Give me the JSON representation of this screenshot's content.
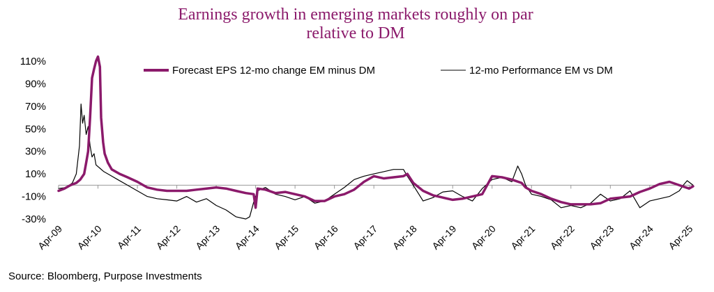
{
  "chart_data": {
    "type": "line",
    "title": [
      "Earnings growth in emerging markets roughly on par",
      "relative to DM"
    ],
    "xlabel": "",
    "ylabel": "",
    "ylim": [
      -35,
      115
    ],
    "y_ticks": [
      "110%",
      "90%",
      "70%",
      "50%",
      "30%",
      "10%",
      "-10%",
      "-30%"
    ],
    "y_tick_values": [
      110,
      90,
      70,
      50,
      30,
      10,
      -10,
      -30
    ],
    "x_ticks": [
      "Apr-09",
      "Apr-10",
      "Apr-11",
      "Apr-12",
      "Apr-13",
      "Apr-14",
      "Apr-15",
      "Apr-16",
      "Apr-17",
      "Apr-18",
      "Apr-19",
      "Apr-20",
      "Apr-21",
      "Apr-22",
      "Apr-23",
      "Apr-24",
      "Apr-25"
    ],
    "x_tick_values": [
      2009.25,
      2010.25,
      2011.25,
      2012.25,
      2013.25,
      2014.25,
      2015.25,
      2016.25,
      2017.25,
      2018.25,
      2019.25,
      2020.25,
      2021.25,
      2022.25,
      2023.25,
      2024.25,
      2025.25
    ],
    "xlim": [
      2009.25,
      2025.35
    ],
    "legend_position": "top",
    "series": [
      {
        "name": "Forecast EPS 12-mo change EM minus DM",
        "color": "#8b1a6b",
        "x": [
          2009.25,
          2009.4,
          2009.55,
          2009.7,
          2009.8,
          2009.9,
          2009.95,
          2010.0,
          2010.05,
          2010.1,
          2010.15,
          2010.2,
          2010.25,
          2010.3,
          2010.33,
          2010.38,
          2010.42,
          2010.5,
          2010.6,
          2010.8,
          2011.0,
          2011.25,
          2011.5,
          2011.75,
          2012.0,
          2012.25,
          2012.5,
          2012.75,
          2013.0,
          2013.25,
          2013.5,
          2013.75,
          2014.0,
          2014.2,
          2014.25,
          2014.3,
          2014.5,
          2014.75,
          2015.0,
          2015.25,
          2015.5,
          2015.75,
          2016.0,
          2016.25,
          2016.5,
          2016.75,
          2017.0,
          2017.25,
          2017.5,
          2017.75,
          2018.0,
          2018.1,
          2018.25,
          2018.5,
          2018.75,
          2019.0,
          2019.25,
          2019.5,
          2019.75,
          2020.0,
          2020.25,
          2020.5,
          2020.75,
          2021.0,
          2021.1,
          2021.25,
          2021.5,
          2021.75,
          2022.0,
          2022.25,
          2022.5,
          2022.75,
          2023.0,
          2023.25,
          2023.5,
          2023.75,
          2024.0,
          2024.25,
          2024.5,
          2024.75,
          2025.0,
          2025.25,
          2025.35
        ],
        "values": [
          -5,
          -3,
          0,
          2,
          5,
          10,
          20,
          30,
          60,
          95,
          103,
          110,
          114,
          105,
          60,
          38,
          28,
          20,
          14,
          10,
          7,
          3,
          -2,
          -4,
          -5,
          -5,
          -5,
          -4,
          -3,
          -2,
          -3,
          -5,
          -7,
          -8,
          -20,
          -3,
          -4,
          -7,
          -6,
          -8,
          -10,
          -14,
          -14,
          -10,
          -8,
          -4,
          3,
          8,
          6,
          7,
          8,
          10,
          2,
          -5,
          -9,
          -11,
          -13,
          -12,
          -10,
          -8,
          8,
          7,
          5,
          2,
          -2,
          -5,
          -8,
          -12,
          -15,
          -17,
          -17,
          -17,
          -16,
          -12,
          -11,
          -10,
          -6,
          -3,
          1,
          3,
          0,
          -3,
          -1
        ]
      },
      {
        "name": "12-mo Performance EM vs DM",
        "color": "#000000",
        "x": [
          2009.25,
          2009.45,
          2009.6,
          2009.7,
          2009.78,
          2009.82,
          2009.86,
          2009.9,
          2009.95,
          2010.0,
          2010.05,
          2010.1,
          2010.15,
          2010.2,
          2010.3,
          2010.4,
          2010.5,
          2010.75,
          2011.0,
          2011.25,
          2011.5,
          2011.75,
          2012.0,
          2012.25,
          2012.5,
          2012.75,
          2013.0,
          2013.25,
          2013.5,
          2013.75,
          2014.0,
          2014.1,
          2014.2,
          2014.3,
          2014.5,
          2014.75,
          2015.0,
          2015.25,
          2015.5,
          2015.75,
          2016.0,
          2016.25,
          2016.5,
          2016.75,
          2017.0,
          2017.25,
          2017.5,
          2017.75,
          2018.0,
          2018.1,
          2018.25,
          2018.5,
          2018.75,
          2019.0,
          2019.25,
          2019.5,
          2019.75,
          2020.0,
          2020.25,
          2020.5,
          2020.75,
          2020.9,
          2021.0,
          2021.1,
          2021.25,
          2021.5,
          2021.75,
          2022.0,
          2022.25,
          2022.5,
          2022.75,
          2023.0,
          2023.25,
          2023.5,
          2023.75,
          2024.0,
          2024.25,
          2024.5,
          2024.75,
          2025.0,
          2025.1,
          2025.2,
          2025.35
        ],
        "values": [
          -3,
          -2,
          2,
          10,
          35,
          72,
          55,
          62,
          45,
          52,
          35,
          25,
          28,
          18,
          15,
          12,
          10,
          5,
          0,
          -5,
          -10,
          -12,
          -13,
          -14,
          -10,
          -15,
          -12,
          -18,
          -22,
          -28,
          -30,
          -28,
          -15,
          -5,
          -2,
          -8,
          -10,
          -13,
          -10,
          -16,
          -14,
          -8,
          -2,
          5,
          8,
          10,
          12,
          14,
          14,
          8,
          0,
          -14,
          -11,
          -6,
          -5,
          -10,
          -14,
          -3,
          5,
          7,
          3,
          17,
          10,
          0,
          -8,
          -10,
          -13,
          -20,
          -18,
          -20,
          -16,
          -8,
          -14,
          -12,
          -5,
          -20,
          -14,
          -12,
          -10,
          -5,
          0,
          4,
          0
        ]
      }
    ]
  },
  "source": "Source: Bloomberg, Purpose Investments"
}
